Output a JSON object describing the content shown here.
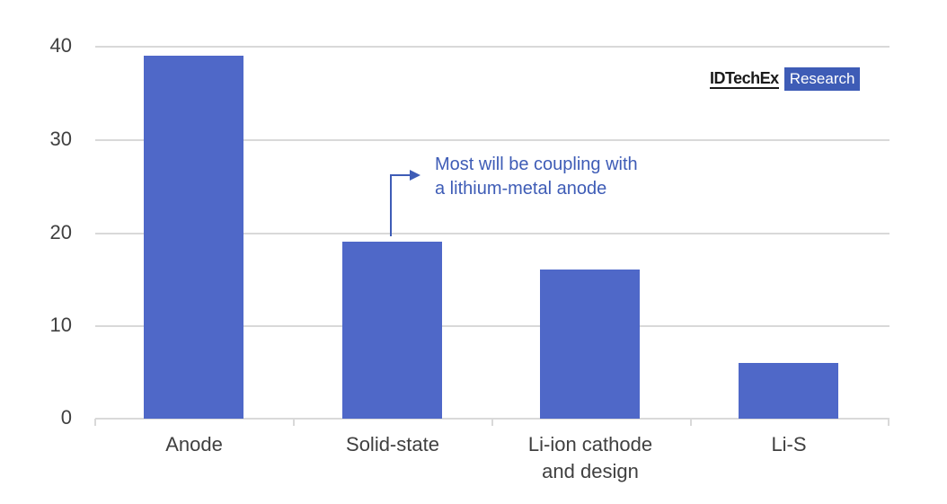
{
  "chart_data": {
    "type": "bar",
    "title": "",
    "xlabel": "",
    "ylabel": "",
    "categories": [
      "Anode",
      "Solid-state",
      "Li-ion cathode and design",
      "Li-S"
    ],
    "category_lines": [
      [
        "Anode"
      ],
      [
        "Solid-state"
      ],
      [
        "Li-ion cathode",
        "and design"
      ],
      [
        "Li-S"
      ]
    ],
    "values": [
      39,
      19,
      16,
      6
    ],
    "ylim": [
      0,
      40
    ],
    "yticks": [
      "0",
      "10",
      "20",
      "30",
      "40"
    ],
    "grid": true,
    "legend": null,
    "bar_color": "#4f68c8",
    "annotations": [
      {
        "text_lines": [
          "Most will be coupling with",
          "a lithium-metal anode"
        ],
        "target": "Solid-state",
        "color": "#3e5cb6"
      }
    ]
  },
  "branding": {
    "logo_main": "IDTechEx",
    "logo_badge": "Research",
    "badge_color": "#3e5cb6"
  }
}
